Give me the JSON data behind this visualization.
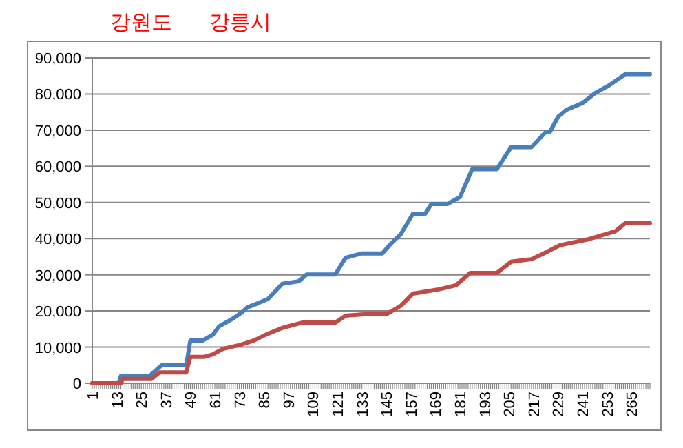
{
  "chart_data": {
    "type": "line",
    "annotations": [
      "강원도",
      "강릉시"
    ],
    "xlim": [
      1,
      274
    ],
    "xticks": [
      1,
      13,
      25,
      37,
      49,
      61,
      73,
      85,
      97,
      109,
      121,
      133,
      145,
      157,
      169,
      181,
      193,
      205,
      217,
      229,
      241,
      253,
      265
    ],
    "ylim": [
      0,
      90000
    ],
    "yticks": [
      {
        "value": 0,
        "label": "0"
      },
      {
        "value": 10000,
        "label": "10,000"
      },
      {
        "value": 20000,
        "label": "20,000"
      },
      {
        "value": 30000,
        "label": "30,000"
      },
      {
        "value": 40000,
        "label": "40,000"
      },
      {
        "value": 50000,
        "label": "50,000"
      },
      {
        "value": 60000,
        "label": "60,000"
      },
      {
        "value": 70000,
        "label": "70,000"
      },
      {
        "value": 80000,
        "label": "80,000"
      },
      {
        "value": 90000,
        "label": "90,000"
      }
    ],
    "grid": "y",
    "marker": "none",
    "line_style": "solid",
    "series": [
      {
        "color": "#4a7ebb",
        "x": [
          1,
          14,
          15,
          29,
          31,
          35,
          47,
          49,
          55,
          60,
          63,
          69,
          74,
          77,
          82,
          87,
          94,
          102,
          106,
          120,
          125,
          133,
          143,
          147,
          152,
          158,
          164,
          167,
          175,
          181,
          187,
          199,
          206,
          216,
          223,
          225,
          229,
          233,
          241,
          247,
          254,
          262,
          274
        ],
        "values": [
          0,
          0,
          2000,
          2000,
          3000,
          5000,
          5000,
          11800,
          11800,
          13400,
          15700,
          17600,
          19500,
          21000,
          22100,
          23300,
          27500,
          28200,
          30100,
          30100,
          34700,
          35900,
          35900,
          38500,
          41200,
          46900,
          46900,
          49600,
          49600,
          51500,
          59200,
          59200,
          65300,
          65300,
          69500,
          69500,
          73700,
          75600,
          77500,
          80200,
          82400,
          85500,
          85500
        ]
      },
      {
        "color": "#be4b48",
        "x": [
          1,
          15,
          16,
          30,
          34,
          47,
          49,
          56,
          60,
          65,
          74,
          80,
          87,
          94,
          104,
          120,
          125,
          135,
          145,
          152,
          158,
          171,
          179,
          186,
          199,
          206,
          216,
          222,
          230,
          243,
          257,
          262,
          274
        ],
        "values": [
          0,
          0,
          1200,
          1200,
          3000,
          3000,
          7300,
          7300,
          8000,
          9500,
          10700,
          11800,
          13700,
          15300,
          16800,
          16800,
          18700,
          19100,
          19100,
          21400,
          24800,
          26000,
          27100,
          30500,
          30500,
          33600,
          34300,
          35900,
          38200,
          39700,
          42000,
          44300,
          44300
        ]
      }
    ]
  }
}
